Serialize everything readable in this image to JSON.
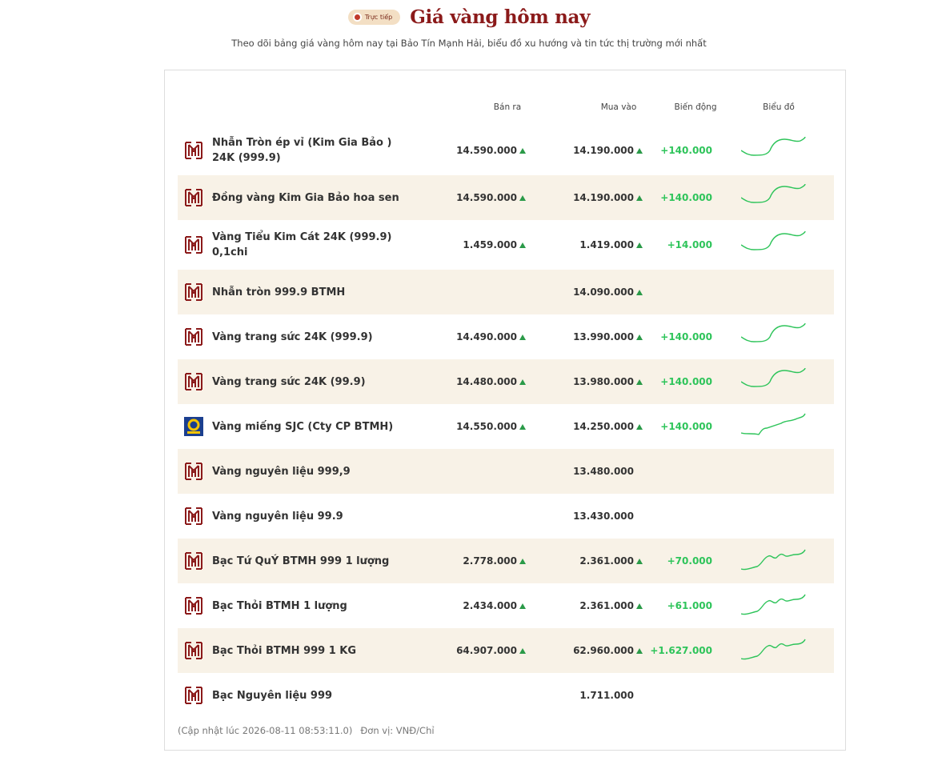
{
  "header": {
    "badge": "Trực tiếp",
    "title": "Giá vàng hôm nay",
    "subtitle": "Theo dõi bảng giá vàng hôm nay tại Bảo Tín Mạnh Hải, biểu đồ xu hướng và tin tức thị trường mới nhất"
  },
  "table": {
    "columns": [
      "Bán ra",
      "Mua vào",
      "Biến động",
      "Biểu đồ"
    ],
    "rows": [
      {
        "icon": "btmh",
        "name": "Nhẫn Tròn ép vỉ (Kim Gia Bảo ) 24K (999.9)",
        "sell": "14.590.000",
        "buy": "14.190.000",
        "change": "+140.000"
      },
      {
        "icon": "btmh",
        "name": "Đồng vàng Kim Gia Bảo hoa sen",
        "sell": "14.590.000",
        "buy": "14.190.000",
        "change": "+140.000"
      },
      {
        "icon": "btmh",
        "name": "Vàng Tiểu Kim Cát 24K (999.9) 0,1chi",
        "sell": "1.459.000",
        "buy": "1.419.000",
        "change": "+14.000"
      },
      {
        "icon": "btmh",
        "name": "Nhẫn tròn 999.9 BTMH",
        "sell": null,
        "buy": "14.090.000",
        "change": null
      },
      {
        "icon": "btmh",
        "name": "Vàng trang sức 24K (999.9)",
        "sell": "14.490.000",
        "buy": "13.990.000",
        "change": "+140.000"
      },
      {
        "icon": "btmh",
        "name": "Vàng trang sức 24K (99.9)",
        "sell": "14.480.000",
        "buy": "13.980.000",
        "change": "+140.000"
      },
      {
        "icon": "sjc",
        "name": "Vàng miếng SJC (Cty CP BTMH)",
        "sell": "14.550.000",
        "buy": "14.250.000",
        "change": "+140.000"
      },
      {
        "icon": "btmh",
        "name": "Vàng nguyên liệu 999,9",
        "sell": null,
        "buy": "13.480.000",
        "change": null
      },
      {
        "icon": "btmh",
        "name": "Vàng nguyên liệu 99.9",
        "sell": null,
        "buy": "13.430.000",
        "change": null
      },
      {
        "icon": "btmh",
        "name": "Bạc Tứ QuÝ BTMH 999 1 lượng",
        "sell": "2.778.000",
        "buy": "2.361.000",
        "change": "+70.000"
      },
      {
        "icon": "btmh",
        "name": "Bạc Thỏi BTMH 1 lượng",
        "sell": "2.434.000",
        "buy": "2.361.000",
        "change": "+61.000"
      },
      {
        "icon": "btmh",
        "name": "Bạc Thỏi BTMH 999 1 KG",
        "sell": "64.907.000",
        "buy": "62.960.000",
        "change": "+1.627.000"
      },
      {
        "icon": "btmh",
        "name": "Bạc Nguyên liệu 999",
        "sell": null,
        "buy": "1.711.000",
        "change": null
      }
    ]
  },
  "footer": {
    "updated": "(Cập nhật lúc 2026-08-11 08:53:11.0)",
    "unit": "Đơn vị: VNĐ/Chỉ"
  }
}
